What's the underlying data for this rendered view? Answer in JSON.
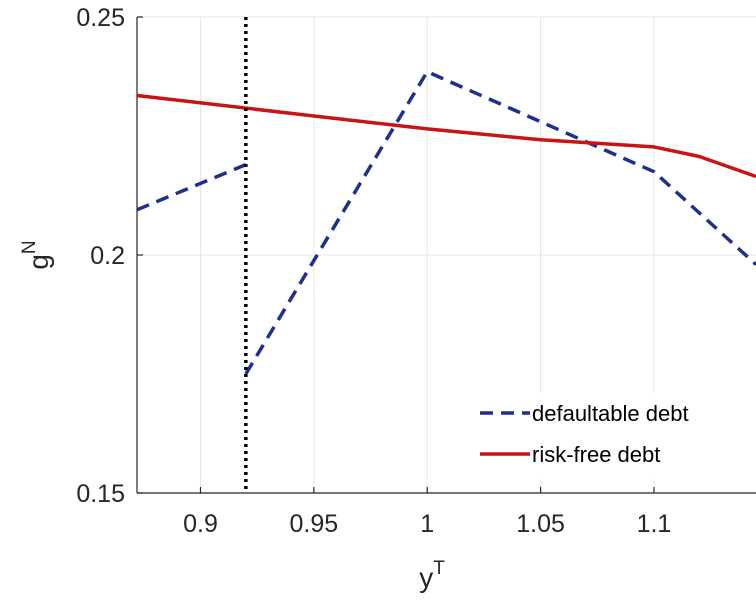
{
  "chart_data": {
    "type": "line",
    "xlabel": "y",
    "xlabel_sup": "T",
    "ylabel": "g",
    "ylabel_sup": "N",
    "xlim": [
      0.872,
      1.145
    ],
    "ylim": [
      0.15,
      0.25
    ],
    "xticks": [
      0.9,
      0.95,
      1.0,
      1.05,
      1.1
    ],
    "xtick_labels": [
      "0.9",
      "0.95",
      "1",
      "1.05",
      "1.1"
    ],
    "yticks": [
      0.15,
      0.2,
      0.25
    ],
    "ytick_labels": [
      "0.15",
      "0.2",
      "0.25"
    ],
    "grid": true,
    "legend_position": "bottom-right",
    "vline_x": 0.92,
    "series": [
      {
        "name": "defaultable debt",
        "style": "dashed",
        "color": "#1f2f8c",
        "segments": [
          [
            [
              0.872,
              0.2095
            ],
            [
              0.92,
              0.219
            ]
          ],
          [
            [
              0.92,
              0.175
            ],
            [
              1.0,
              0.2385
            ],
            [
              1.1,
              0.2175
            ],
            [
              1.145,
              0.198
            ]
          ]
        ]
      },
      {
        "name": "risk-free debt",
        "style": "solid",
        "color": "#c81414",
        "segments": [
          [
            [
              0.872,
              0.2335
            ],
            [
              0.95,
              0.2292
            ],
            [
              1.0,
              0.2265
            ],
            [
              1.05,
              0.2242
            ],
            [
              1.1,
              0.2227
            ],
            [
              1.12,
              0.2207
            ],
            [
              1.145,
              0.2165
            ]
          ]
        ]
      }
    ],
    "vline_color": "#000000"
  }
}
